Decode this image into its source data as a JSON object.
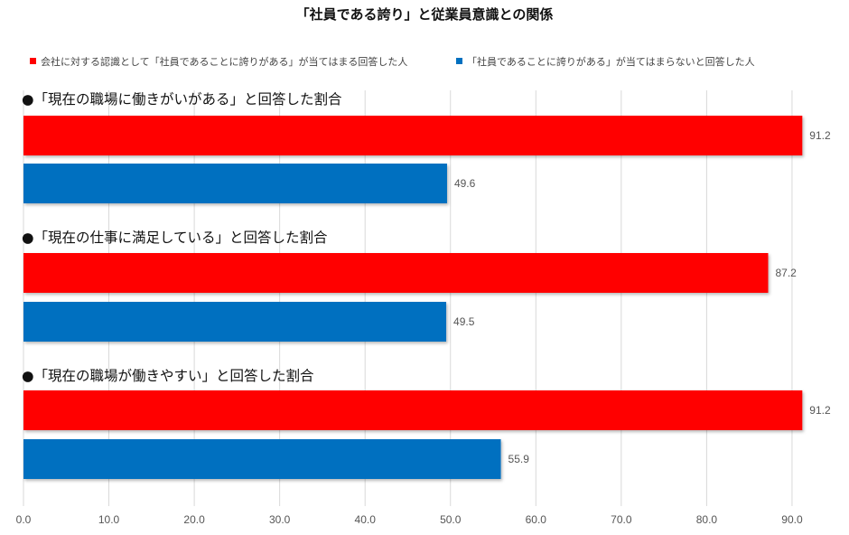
{
  "chart_data": {
    "type": "bar",
    "orientation": "horizontal",
    "title": "「社員である誇り」と従業員意識との関係",
    "legend_position": "top",
    "categories": [
      "●「現在の職場に働きがいがある」と回答した割合",
      "●「現在の仕事に満足している」と回答した割合",
      "●「現在の職場が働きやすい」と回答した割合"
    ],
    "series": [
      {
        "name": "会社に対する認識として「社員であることに誇りがある」が当てはまる回答した人",
        "color": "#ff0000",
        "values": [
          91.2,
          87.2,
          91.2
        ],
        "labels": [
          "91.2",
          "87.2",
          "91.2"
        ]
      },
      {
        "name": "「社員であることに誇りがある」が当てはまらないと回答した人",
        "color": "#0070c0",
        "values": [
          49.6,
          49.5,
          55.9
        ],
        "labels": [
          "49.6",
          "49.5",
          "55.9"
        ]
      }
    ],
    "xlim": [
      0,
      90
    ],
    "x_ticks": [
      0,
      10,
      20,
      30,
      40,
      50,
      60,
      70,
      80,
      90
    ],
    "x_tick_labels": [
      "0.0",
      "10.0",
      "20.0",
      "30.0",
      "40.0",
      "50.0",
      "60.0",
      "70.0",
      "80.0",
      "90.0"
    ],
    "grid": true,
    "grid_color": "#d9d9d9",
    "xlabel": "",
    "ylabel": ""
  }
}
